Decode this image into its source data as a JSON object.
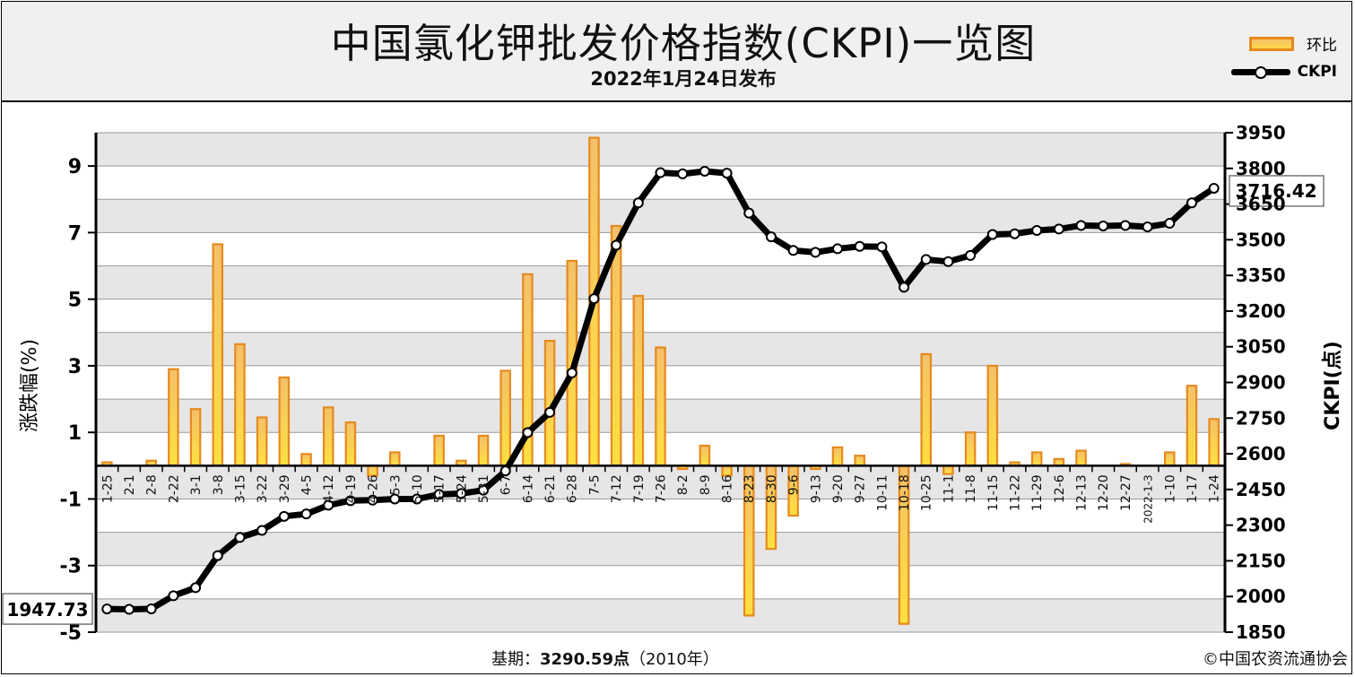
{
  "chart_data": {
    "type": "bar+line",
    "title": "中国氯化钾批发价格指数(CKPI)一览图",
    "subtitle": "2022年1月24日发布",
    "legend": [
      "环比",
      "CKPI"
    ],
    "legend_position": "top-right",
    "ylabel_left": "涨跌幅(%)",
    "ylabel_right": "CKPI(点)",
    "ylim_left": [
      -5,
      10
    ],
    "yticks_left": [
      9,
      7,
      5,
      3,
      1,
      -1,
      -3,
      -5
    ],
    "ylim_right": [
      1850,
      3950
    ],
    "yticks_right": [
      3950,
      3800,
      3650,
      3500,
      3350,
      3200,
      3050,
      2900,
      2750,
      2600,
      2450,
      2300,
      2150,
      2000,
      1850
    ],
    "categories": [
      "1-25",
      "2-1",
      "2-8",
      "2-22",
      "3-1",
      "3-8",
      "3-15",
      "3-22",
      "3-29",
      "4-5",
      "4-12",
      "4-19",
      "4-26",
      "5-3",
      "5-10",
      "5-17",
      "5-24",
      "5-31",
      "6-7",
      "6-14",
      "6-21",
      "6-28",
      "7-5",
      "7-12",
      "7-19",
      "7-26",
      "8-2",
      "8-9",
      "8-16",
      "8-23",
      "8-30",
      "9-6",
      "9-13",
      "9-20",
      "9-27",
      "10-11",
      "10-18",
      "10-25",
      "11-1",
      "11-8",
      "11-15",
      "11-22",
      "11-29",
      "12-6",
      "12-13",
      "12-20",
      "12-27",
      "2022-1-3",
      "1-10",
      "1-17",
      "1-24"
    ],
    "series": [
      {
        "name": "环比",
        "kind": "bar",
        "values": [
          0.1,
          0,
          0.15,
          2.9,
          1.7,
          6.65,
          3.65,
          1.45,
          2.65,
          0.35,
          1.75,
          1.3,
          -0.3,
          0.4,
          0,
          0.9,
          0.15,
          0.9,
          2.85,
          5.75,
          3.75,
          6.15,
          9.85,
          7.2,
          5.1,
          3.55,
          -0.1,
          0.6,
          -0.3,
          -4.5,
          -2.5,
          -1.5,
          -0.1,
          0.55,
          0.3,
          0,
          -4.75,
          3.35,
          -0.25,
          1.0,
          3.0,
          0.1,
          0.4,
          0.2,
          0.45,
          0,
          0.05,
          0,
          0.4,
          2.4,
          1.4
        ]
      },
      {
        "name": "CKPI",
        "kind": "line",
        "values": [
          1947.73,
          1946,
          1948,
          2003,
          2037,
          2172,
          2248,
          2278,
          2337,
          2347,
          2384,
          2403,
          2405,
          2410,
          2410,
          2429,
          2433,
          2447,
          2528,
          2689,
          2774,
          2940,
          3252,
          3477,
          3655,
          3782,
          3777,
          3788,
          3780,
          3612,
          3512,
          3455,
          3447,
          3462,
          3472,
          3470,
          3300,
          3417,
          3408,
          3434,
          3522,
          3525,
          3539,
          3545,
          3560,
          3558,
          3560,
          3554,
          3569,
          3655,
          3716.42
        ]
      }
    ],
    "annotations": [
      "1947.73",
      "3716.42"
    ],
    "grid": true
  },
  "footer": {
    "base_label": "基期：",
    "base_value": "3290.59点",
    "base_year": "（2010年）",
    "copyright": "©中国农资流通协会"
  },
  "colors": {
    "bar_border": "#e68a1e",
    "bar_fill_top": "#f4c06a",
    "bar_fill_bottom": "#ffe040",
    "line": "#000000",
    "marker_fill": "#ffffff",
    "plot_bg_band": "#e6e6e6"
  }
}
